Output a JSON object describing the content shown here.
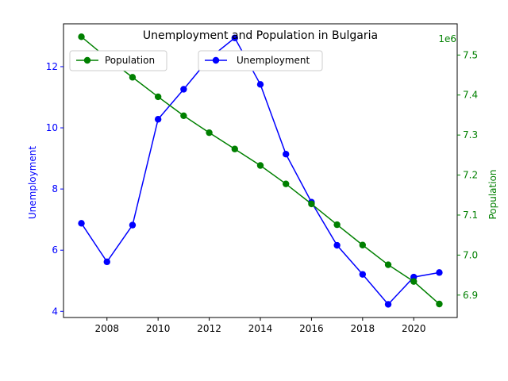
{
  "chart_data": {
    "type": "line",
    "title": "Unemployment and Population in Bulgaria",
    "x": [
      2007,
      2008,
      2009,
      2010,
      2011,
      2012,
      2013,
      2014,
      2015,
      2016,
      2017,
      2018,
      2019,
      2020,
      2021
    ],
    "x_ticks": [
      2008,
      2010,
      2012,
      2014,
      2016,
      2018,
      2020
    ],
    "xlim": [
      2006.3,
      2021.7
    ],
    "series": [
      {
        "name": "Unemployment",
        "axis": "left",
        "color": "#0000ff",
        "values": [
          6.88,
          5.62,
          6.82,
          10.28,
          11.26,
          12.27,
          12.94,
          11.42,
          9.14,
          7.57,
          6.16,
          5.21,
          4.23,
          5.12,
          5.27
        ]
      },
      {
        "name": "Population",
        "axis": "right",
        "color": "#008000",
        "values": [
          7545600,
          7492600,
          7444400,
          7395600,
          7348300,
          7305900,
          7265100,
          7223900,
          7177900,
          7127800,
          7075900,
          7025000,
          6975800,
          6934000,
          6877700
        ]
      }
    ],
    "y_left": {
      "label": "Unemployment",
      "color": "#0000ff",
      "ticks": [
        4,
        6,
        8,
        10,
        12
      ],
      "lim": [
        3.8,
        13.4
      ]
    },
    "y_right": {
      "label": "Population",
      "color": "#008000",
      "ticks": [
        6.9,
        7.0,
        7.1,
        7.2,
        7.3,
        7.4,
        7.5
      ],
      "scale_label": "1e6",
      "lim": [
        6.844,
        7.578
      ]
    },
    "legend": [
      {
        "name": "Population",
        "color": "#008000",
        "placement": "upper-left"
      },
      {
        "name": "Unemployment",
        "color": "#0000ff",
        "placement": "upper-center"
      }
    ],
    "grid": false
  }
}
